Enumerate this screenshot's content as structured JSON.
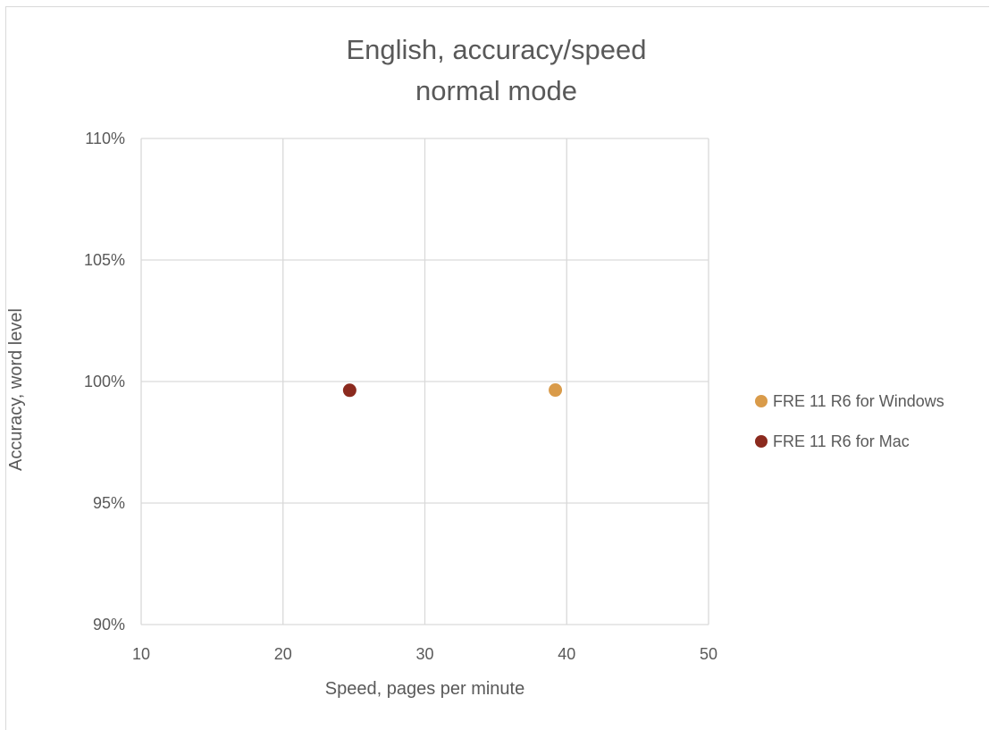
{
  "chart_data": {
    "type": "scatter",
    "title_line1": "English, accuracy/speed",
    "title_line2": "normal mode",
    "xlabel": "Speed, pages per minute",
    "ylabel": "Accuracy, word level",
    "xlim": [
      10,
      50
    ],
    "ylim": [
      0.9,
      1.1
    ],
    "x_ticks": [
      10,
      20,
      30,
      40,
      50
    ],
    "x_tick_labels": [
      "10",
      "20",
      "30",
      "40",
      "50"
    ],
    "y_ticks": [
      0.9,
      0.95,
      1.0,
      1.05,
      1.1
    ],
    "y_tick_labels": [
      "90%",
      "95%",
      "100%",
      "105%",
      "110%"
    ],
    "grid": true,
    "legend_position": "right",
    "series": [
      {
        "name": "FRE 11 R6 for Windows",
        "color": "#d99b4a",
        "points": [
          {
            "x": 39.2,
            "y": 0.9965
          }
        ]
      },
      {
        "name": "FRE 11 R6 for Mac",
        "color": "#8b2a1e",
        "points": [
          {
            "x": 24.7,
            "y": 0.9964
          }
        ]
      }
    ]
  }
}
